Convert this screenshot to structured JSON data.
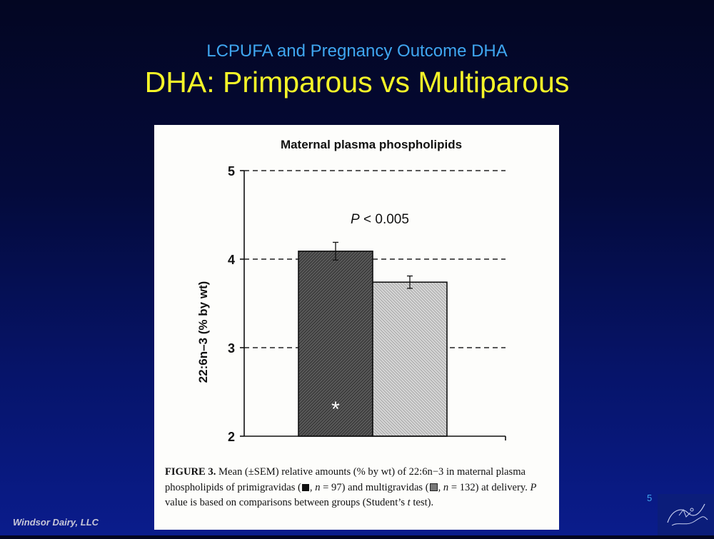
{
  "slide": {
    "subtitle": "LCPUFA and Pregnancy Outcome  DHA",
    "title": "DHA: Primparous vs Multiparous",
    "footer": "Windsor Dairy, LLC",
    "page_number": "5"
  },
  "chart_data": {
    "type": "bar",
    "title": "Maternal plasma phospholipids",
    "ylabel": "22:6n–3 (% by wt)",
    "xlabel": "",
    "ylim": [
      2,
      5
    ],
    "yticks": [
      2,
      3,
      4,
      5
    ],
    "grid": "dashed horizontal",
    "annotation": "P < 0.005",
    "annotation_p": "P",
    "annotation_rest": " < 0.005",
    "categories": [
      "Primigravidas",
      "Multigravidas"
    ],
    "values": [
      4.09,
      3.74
    ],
    "sem": [
      0.1,
      0.07
    ],
    "bar_marks": [
      "*",
      ""
    ],
    "colors": [
      "#4a4a4a",
      "#bdbdbd"
    ]
  },
  "caption": {
    "label": "FIGURE 3.",
    "text_1": " Mean (±SEM) relative amounts (% by wt) of 22:6n−3 in maternal plasma phospholipids of primigravidas (",
    "text_2": ", ",
    "n_label": "n",
    "text_3": " = 97) and multi­gravidas (",
    "text_4": ", ",
    "text_5": " = 132) at delivery. ",
    "p_label": "P",
    "text_6": " value is based on comparisons between groups (Student’s ",
    "t_label": "t",
    "text_7": " test)."
  }
}
